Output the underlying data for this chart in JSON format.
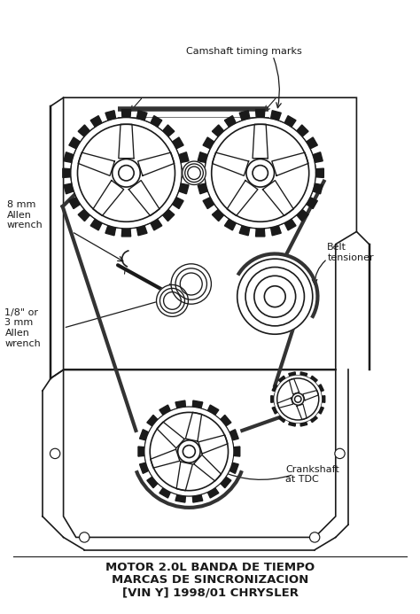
{
  "title_line1": "MOTOR 2.0L BANDA DE TIEMPO",
  "title_line2": "MARCAS DE SINCRONIZACION",
  "title_line3": "[VIN Y] 1998/01 CHRYSLER",
  "bg_color": "#ffffff",
  "line_color": "#1a1a1a",
  "label_camshaft": "Camshaft timing marks",
  "label_8mm": "8 mm\nAllen\nwrench",
  "label_belt": "Belt\ntensioner",
  "label_18mm": "1/8\" or\n3 mm\nAllen\nwrench",
  "label_crankshaft": "Crankshaft\nat TDC",
  "figsize": [
    4.74,
    6.93
  ],
  "dpi": 100
}
